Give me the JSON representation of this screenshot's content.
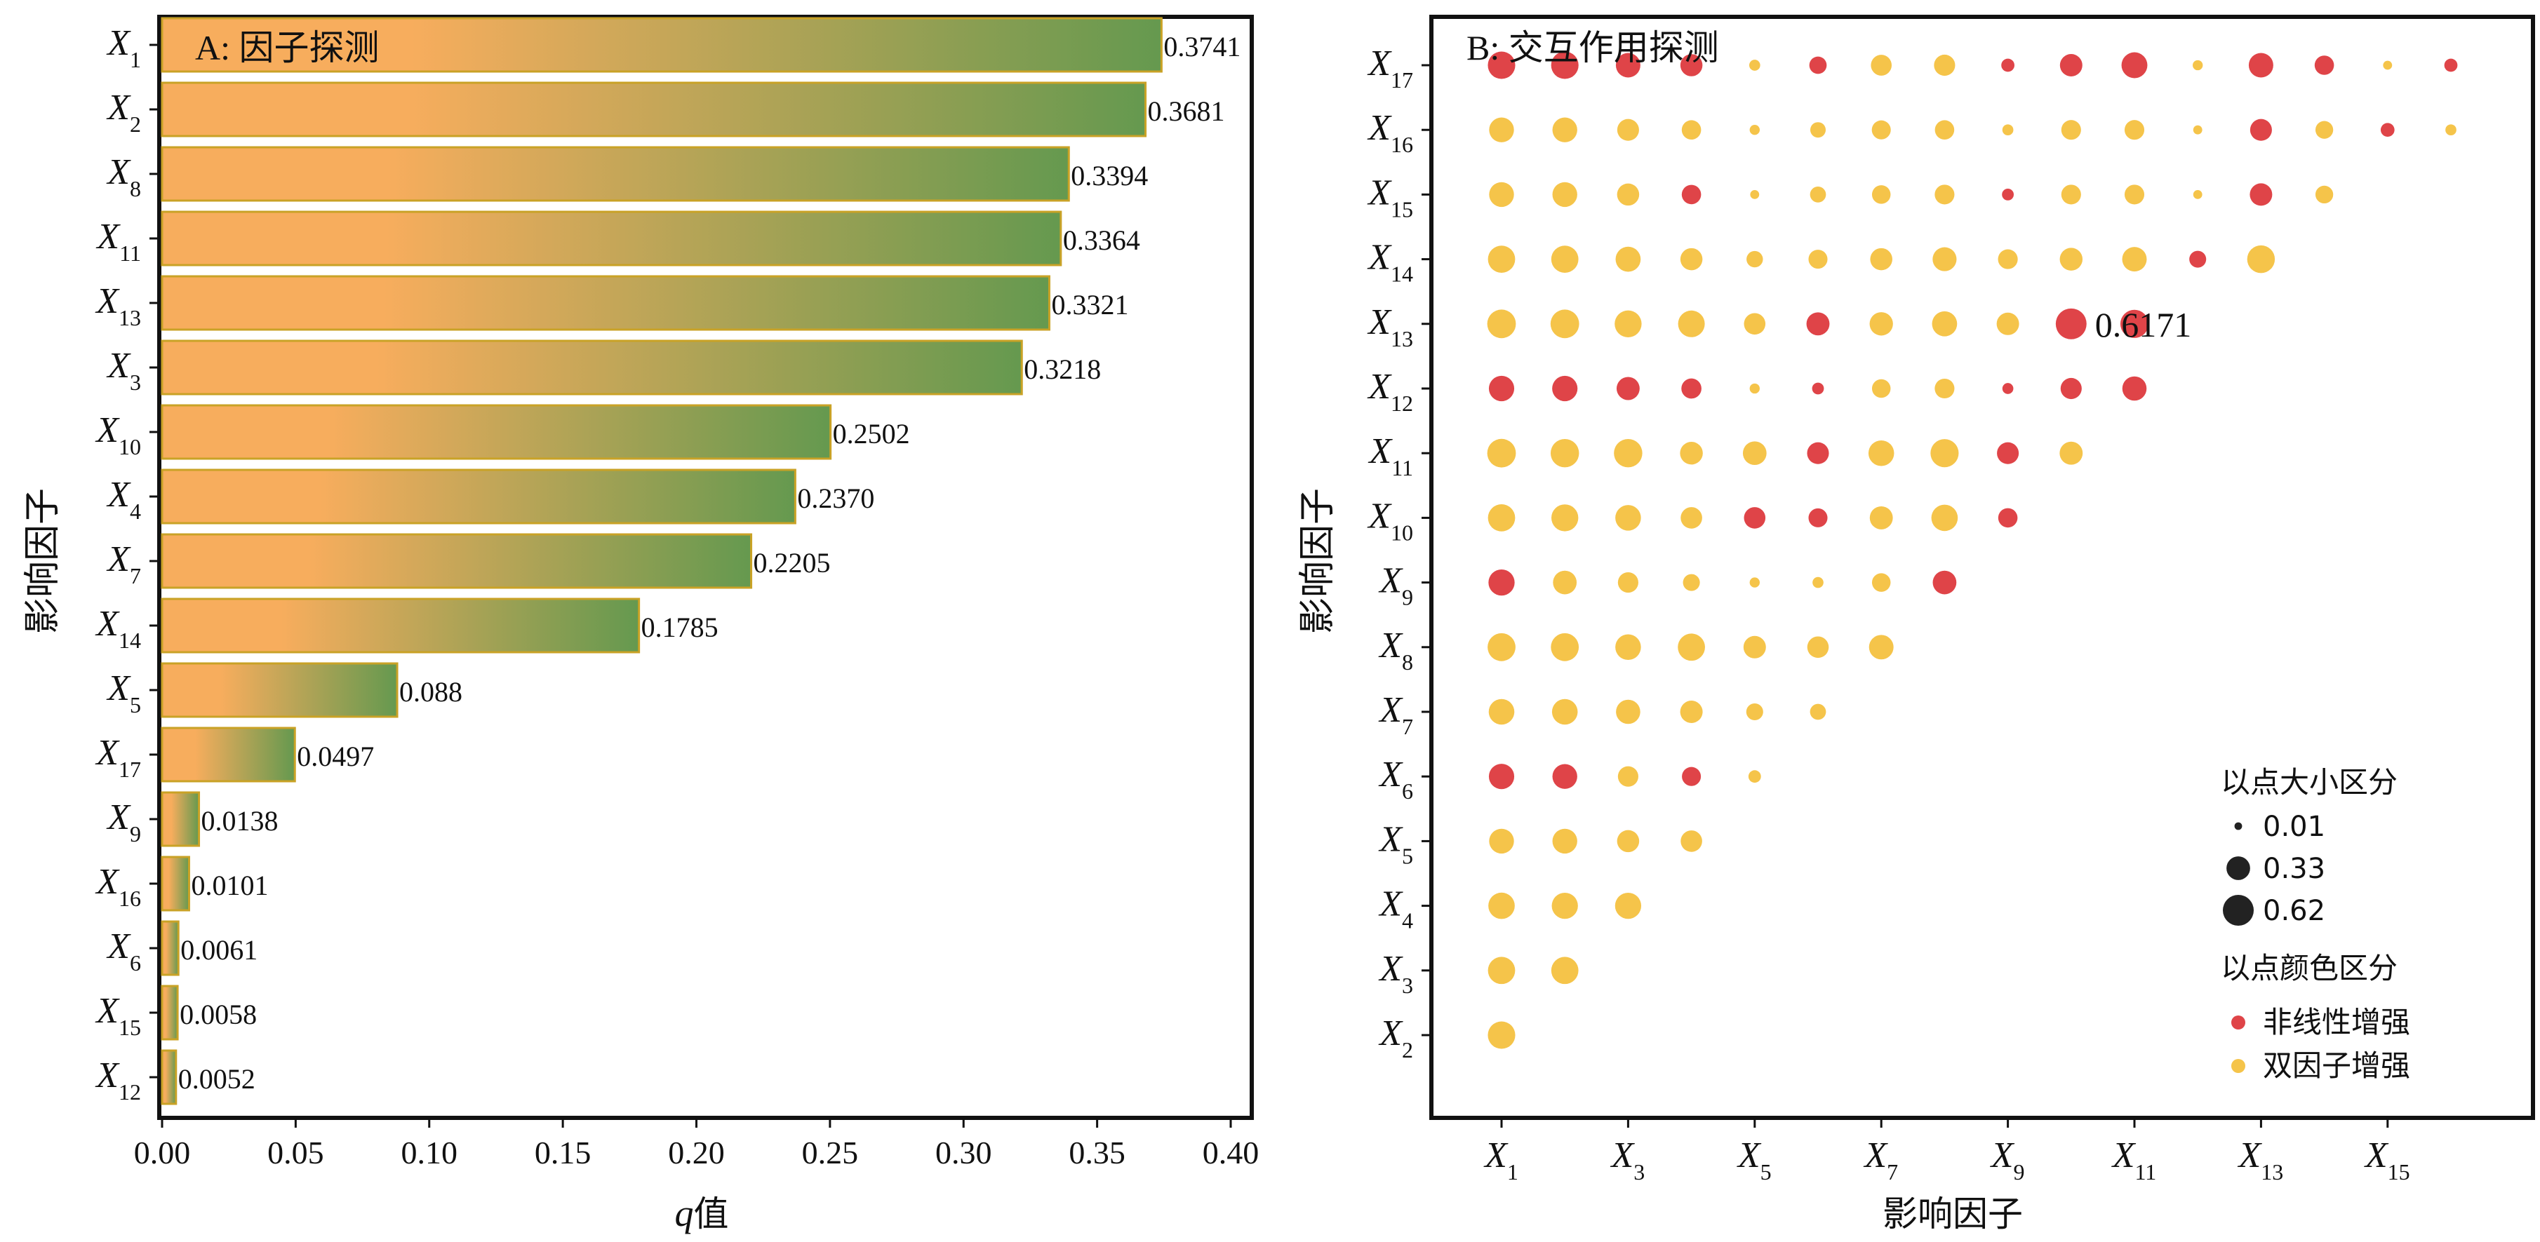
{
  "colors": {
    "bar_start": "#f7ad5d",
    "bar_end": "#65994f",
    "bar_edge": "#c9a226",
    "nonlinear": "#df4448",
    "bivariate": "#f5c44a",
    "frame": "#111111",
    "legend_dot": "#222222"
  },
  "chart_data": [
    {
      "type": "bar",
      "orientation": "horizontal",
      "panel_label": "A: 因子探测",
      "xlabel_italic": "q",
      "xlabel_rest": "值",
      "ylabel": "影响因子",
      "xlim": [
        0,
        0.4
      ],
      "xticks": [
        "0.00",
        "0.05",
        "0.10",
        "0.15",
        "0.20",
        "0.25",
        "0.30",
        "0.35",
        "0.40"
      ],
      "categories": [
        "X1",
        "X2",
        "X8",
        "X11",
        "X13",
        "X3",
        "X10",
        "X4",
        "X7",
        "X14",
        "X5",
        "X17",
        "X9",
        "X16",
        "X6",
        "X15",
        "X12"
      ],
      "cat_sub": [
        "1",
        "2",
        "8",
        "11",
        "13",
        "3",
        "10",
        "4",
        "7",
        "14",
        "5",
        "17",
        "9",
        "16",
        "6",
        "15",
        "12"
      ],
      "values": [
        0.3741,
        0.3681,
        0.3394,
        0.3364,
        0.3321,
        0.3218,
        0.2502,
        0.237,
        0.2205,
        0.1785,
        0.088,
        0.0497,
        0.0138,
        0.0101,
        0.0061,
        0.0058,
        0.0052
      ],
      "value_labels": [
        "0.3741",
        "0.3681",
        "0.3394",
        "0.3364",
        "0.3321",
        "0.3218",
        "0.2502",
        "0.2370",
        "0.2205",
        "0.1785",
        "0.088",
        "0.0497",
        "0.0138",
        "0.0101",
        "0.0061",
        "0.0058",
        "0.0052"
      ]
    },
    {
      "type": "scatter",
      "panel_label": "B: 交互作用探测",
      "xlabel": "影响因子",
      "ylabel": "影响因子",
      "x_factors": [
        1,
        2,
        3,
        4,
        5,
        6,
        7,
        8,
        9,
        10,
        11,
        12,
        13,
        14,
        15,
        16
      ],
      "x_tick_subs": [
        "1",
        "3",
        "5",
        "7",
        "9",
        "11",
        "13",
        "15"
      ],
      "y_factors": [
        2,
        3,
        4,
        5,
        6,
        7,
        8,
        9,
        10,
        11,
        12,
        13,
        14,
        15,
        16,
        17
      ],
      "rows": {
        "17": [
          0.47,
          0.47,
          0.36,
          0.28,
          0.04,
          0.15,
          0.24,
          0.25,
          0.07,
          0.29,
          0.41,
          0.03,
          0.36,
          0.2,
          0.02,
          0.07
        ],
        "16": [
          0.37,
          0.37,
          0.27,
          0.2,
          0.03,
          0.11,
          0.19,
          0.2,
          0.04,
          0.21,
          0.21,
          0.02,
          0.27,
          0.16,
          0.08,
          0.04
        ],
        "15": [
          0.37,
          0.37,
          0.28,
          0.2,
          0.02,
          0.12,
          0.18,
          0.21,
          0.05,
          0.21,
          0.21,
          0.02,
          0.29,
          0.16
        ],
        "14": [
          0.46,
          0.46,
          0.38,
          0.28,
          0.13,
          0.19,
          0.28,
          0.34,
          0.21,
          0.3,
          0.36,
          0.14,
          0.48
        ],
        "13": [
          0.52,
          0.52,
          0.45,
          0.44,
          0.26,
          0.31,
          0.32,
          0.38,
          0.29,
          0.6171,
          0.5
        ],
        "12": [
          0.39,
          0.39,
          0.31,
          0.22,
          0.03,
          0.05,
          0.18,
          0.21,
          0.04,
          0.25,
          0.35
        ],
        "11": [
          0.52,
          0.51,
          0.51,
          0.3,
          0.33,
          0.27,
          0.4,
          0.5,
          0.27,
          0.31
        ],
        "10": [
          0.46,
          0.45,
          0.4,
          0.26,
          0.26,
          0.19,
          0.31,
          0.43,
          0.2
        ],
        "9": [
          0.42,
          0.33,
          0.23,
          0.14,
          0.03,
          0.04,
          0.18,
          0.33
        ],
        "8": [
          0.49,
          0.49,
          0.4,
          0.46,
          0.29,
          0.26,
          0.36
        ],
        "7": [
          0.4,
          0.4,
          0.35,
          0.29,
          0.14,
          0.12
        ],
        "6": [
          0.39,
          0.37,
          0.23,
          0.19,
          0.06
        ],
        "5": [
          0.37,
          0.37,
          0.28,
          0.26
        ],
        "4": [
          0.43,
          0.42,
          0.42
        ],
        "3": [
          0.46,
          0.46
        ],
        "2": [
          0.47
        ]
      },
      "nonlinear": [
        "17:1",
        "17:2",
        "17:3",
        "17:4",
        "17:6",
        "17:9",
        "17:10",
        "17:11",
        "17:13",
        "17:14",
        "17:16",
        "16:13",
        "16:15",
        "15:4",
        "15:9",
        "15:13",
        "14:12",
        "13:6",
        "13:10",
        "13:11",
        "12:1",
        "12:2",
        "12:3",
        "12:4",
        "12:6",
        "12:9",
        "12:10",
        "12:11",
        "11:6",
        "11:9",
        "10:5",
        "10:6",
        "10:9",
        "9:1",
        "9:8",
        "6:1",
        "6:2",
        "6:4"
      ],
      "annotation": {
        "row": "13",
        "col": 10,
        "text": "0.6171"
      },
      "legend": {
        "size_title": "以点大小区分",
        "size_entries": [
          {
            "label": "0.01",
            "value": 0.01
          },
          {
            "label": "0.33",
            "value": 0.33
          },
          {
            "label": "0.62",
            "value": 0.62
          }
        ],
        "color_title": "以点颜色区分",
        "color_entries": [
          {
            "label": "非线性增强",
            "color_key": "nonlinear"
          },
          {
            "label": "双因子增强",
            "color_key": "bivariate"
          }
        ]
      }
    }
  ]
}
